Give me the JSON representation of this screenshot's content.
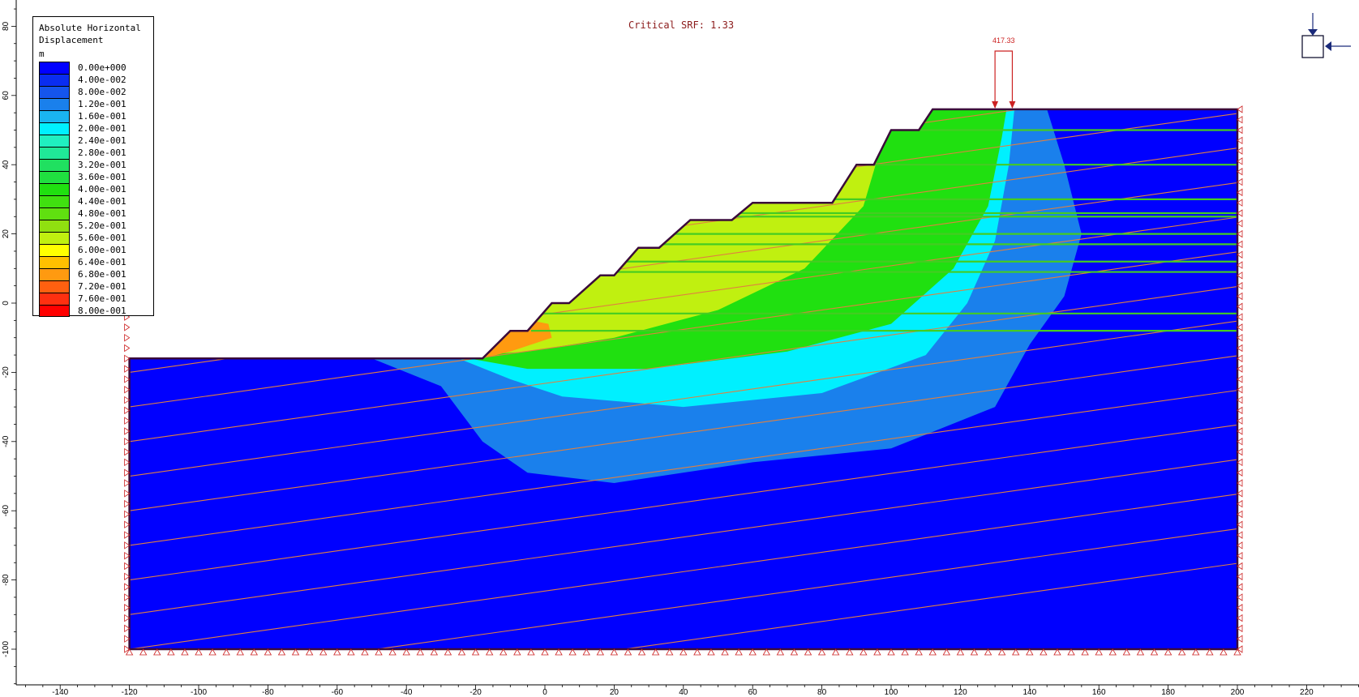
{
  "critical_srf": "Critical SRF: 1.33",
  "load_label": "417.33",
  "legend": {
    "title_line1": "Absolute Horizontal",
    "title_line2": "Displacement",
    "unit": "m",
    "entries": [
      {
        "label": "0.00e+000",
        "color": "#0000ff"
      },
      {
        "label": "4.00e-002",
        "color": "#0a2df0"
      },
      {
        "label": "8.00e-002",
        "color": "#1555ec"
      },
      {
        "label": "1.20e-001",
        "color": "#1a80ec"
      },
      {
        "label": "1.60e-001",
        "color": "#1ab4f0"
      },
      {
        "label": "2.00e-001",
        "color": "#00f0ff"
      },
      {
        "label": "2.40e-001",
        "color": "#20f0c0"
      },
      {
        "label": "2.80e-001",
        "color": "#20e898"
      },
      {
        "label": "3.20e-001",
        "color": "#20e060"
      },
      {
        "label": "3.60e-001",
        "color": "#20e040"
      },
      {
        "label": "4.00e-001",
        "color": "#20e010"
      },
      {
        "label": "4.40e-001",
        "color": "#40e010"
      },
      {
        "label": "4.80e-001",
        "color": "#60e010"
      },
      {
        "label": "5.20e-001",
        "color": "#90e010"
      },
      {
        "label": "5.60e-001",
        "color": "#c0f010"
      },
      {
        "label": "6.00e-001",
        "color": "#ffff00"
      },
      {
        "label": "6.40e-001",
        "color": "#ffc000"
      },
      {
        "label": "6.80e-001",
        "color": "#ff9a10"
      },
      {
        "label": "7.20e-001",
        "color": "#ff6010"
      },
      {
        "label": "7.60e-001",
        "color": "#ff3010"
      },
      {
        "label": "8.00e-001",
        "color": "#ff0000"
      }
    ]
  },
  "x_axis": {
    "ticks": [
      "-140",
      "-120",
      "-100",
      "-80",
      "-60",
      "-40",
      "-20",
      "0",
      "20",
      "40",
      "60",
      "80",
      "100",
      "120",
      "140",
      "160",
      "180",
      "200",
      "220"
    ],
    "values": [
      -140,
      -120,
      -100,
      -80,
      -60,
      -40,
      -20,
      0,
      20,
      40,
      60,
      80,
      100,
      120,
      140,
      160,
      180,
      200,
      220
    ]
  },
  "y_axis": {
    "ticks": [
      "80",
      "60",
      "40",
      "20",
      "0",
      "-20",
      "-40",
      "-60",
      "-80",
      "-100"
    ],
    "values": [
      80,
      60,
      40,
      20,
      0,
      -20,
      -40,
      -60,
      -80,
      -100
    ]
  },
  "model": {
    "profile": [
      [
        -120,
        -16
      ],
      [
        -18,
        -16
      ],
      [
        -10,
        -8
      ],
      [
        -5,
        -8
      ],
      [
        2,
        0
      ],
      [
        7,
        0
      ],
      [
        16,
        8
      ],
      [
        20,
        8
      ],
      [
        27,
        16
      ],
      [
        33,
        16
      ],
      [
        42,
        24
      ],
      [
        54,
        24
      ],
      [
        60,
        29
      ],
      [
        83,
        29
      ],
      [
        90,
        40
      ],
      [
        95,
        40
      ],
      [
        100,
        50
      ],
      [
        108,
        50
      ],
      [
        112,
        56
      ],
      [
        200,
        56
      ],
      [
        200,
        -100
      ],
      [
        -120,
        -100
      ]
    ],
    "distributed_load": {
      "x_start": 130,
      "x_end": 135
    },
    "colors": {
      "boundary": "#3a0a3a",
      "joint_lines": "#e08040",
      "bolts": "#44cc22",
      "restraints": "#cc2222"
    }
  }
}
